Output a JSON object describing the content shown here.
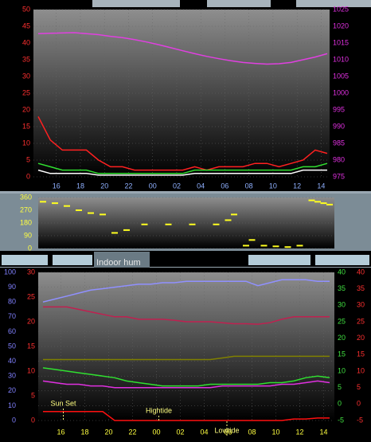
{
  "chart_data": [
    {
      "type": "line",
      "xlim": [
        14.1,
        38.7
      ],
      "xticks": [
        16,
        18,
        20,
        22,
        {
          "value": 24,
          "label": "00"
        },
        {
          "value": 26,
          "label": "02"
        },
        {
          "value": 28,
          "label": "04"
        },
        {
          "value": 30,
          "label": "06"
        },
        {
          "value": 32,
          "label": "08"
        },
        {
          "value": 34,
          "label": "10"
        },
        {
          "value": 36,
          "label": "12"
        },
        {
          "value": 38,
          "label": "14"
        }
      ],
      "ylim": [
        0,
        50
      ],
      "yticks": [
        0,
        5,
        10,
        15,
        20,
        25,
        30,
        35,
        40,
        45,
        50
      ],
      "ytick_color": "#ff3030",
      "y2lim": [
        975,
        1025
      ],
      "y2ticks": [
        975,
        980,
        985,
        990,
        995,
        1000,
        1005,
        1010,
        1015,
        1020,
        1025
      ],
      "y2tick_color": "#e030e0",
      "grid": true,
      "xtick_color": "#8fb0ff",
      "x": [
        14.5,
        15.5,
        16.5,
        17.5,
        18.5,
        19.5,
        20.5,
        21.5,
        22.5,
        23.5,
        24.5,
        25.5,
        26.5,
        27.5,
        28.5,
        29.5,
        30.5,
        31.5,
        32.5,
        33.5,
        34.5,
        35.5,
        36.5,
        37.5,
        38.5
      ],
      "series": [
        {
          "color": "#e040e0",
          "axis": "y2",
          "values": [
            1017.8,
            1017.9,
            1018,
            1018.1,
            1017.8,
            1017.5,
            1017,
            1016.6,
            1016,
            1015.3,
            1014.5,
            1013.6,
            1012.7,
            1011.8,
            1011,
            1010.3,
            1009.7,
            1009.2,
            1008.9,
            1008.7,
            1008.8,
            1009.2,
            1010,
            1010.8,
            1011.8
          ]
        },
        {
          "color": "#ff2020",
          "values": [
            18,
            11,
            8,
            8,
            8,
            5,
            3,
            3,
            2,
            2,
            2,
            2,
            2,
            3,
            2,
            3,
            3,
            3,
            4,
            4,
            3,
            4,
            5,
            8,
            7
          ]
        },
        {
          "color": "#30e030",
          "values": [
            4,
            3,
            2,
            2,
            2,
            1,
            1,
            1,
            1,
            1,
            1,
            1,
            1,
            2,
            2,
            2,
            2,
            2,
            2,
            2,
            2,
            2,
            3,
            3,
            4
          ]
        },
        {
          "color": "#ffffff",
          "values": [
            2,
            1,
            1,
            1,
            1,
            0.5,
            0.5,
            0.5,
            0.5,
            0.5,
            0.5,
            0.5,
            0.5,
            1,
            1,
            1,
            1,
            1,
            1,
            1,
            1,
            1,
            2,
            2,
            2
          ]
        }
      ]
    },
    {
      "type": "scatter",
      "xlim": [
        14.1,
        38.9
      ],
      "ylim": [
        0,
        360
      ],
      "yticks": [
        0,
        90,
        180,
        270,
        360
      ],
      "ytick_color": "#ffff40",
      "grid": true,
      "x": [
        14.5,
        15.5,
        16.5,
        17.5,
        18.5,
        19.5,
        20.5,
        21.5,
        23,
        25,
        27,
        29,
        30,
        30.5,
        31.5,
        32,
        33,
        34,
        35,
        36,
        37,
        37.5,
        38,
        38.5
      ],
      "series": [
        {
          "color": "#ffff20",
          "values": [
            330,
            320,
            300,
            270,
            250,
            240,
            110,
            130,
            170,
            170,
            170,
            170,
            200,
            240,
            20,
            60,
            20,
            15,
            10,
            20,
            340,
            330,
            320,
            310
          ]
        }
      ]
    },
    {
      "type": "line",
      "title": "Indoor hum",
      "xlim": [
        14.1,
        38.9
      ],
      "xticks": [
        16,
        18,
        20,
        22,
        {
          "value": 24,
          "label": "00"
        },
        {
          "value": 26,
          "label": "02"
        },
        {
          "value": 28,
          "label": "04"
        },
        {
          "value": 30,
          "label": "06"
        },
        {
          "value": 32,
          "label": "08"
        },
        {
          "value": 34,
          "label": "10"
        },
        {
          "value": 36,
          "label": "12"
        },
        {
          "value": 38,
          "label": "14"
        }
      ],
      "xtick_color": "#ffff40",
      "ylim": [
        0,
        100
      ],
      "yticks": [
        0,
        10,
        20,
        30,
        40,
        50,
        60,
        70,
        80,
        90,
        100
      ],
      "ytick_color": "#8080ff",
      "y2lim": [
        0,
        30
      ],
      "y2ticks": [
        0,
        5,
        10,
        15,
        20,
        25,
        30
      ],
      "y2tick_color": "#ff3030",
      "y3lim": [
        -5,
        40
      ],
      "y3ticks": [
        -5,
        0,
        5,
        10,
        15,
        20,
        25,
        30,
        35,
        40
      ],
      "y3tick_color": "#40e040",
      "y4lim": [
        -5,
        40
      ],
      "y4ticks": [
        -5,
        0,
        5,
        10,
        15,
        20,
        25,
        30,
        35,
        40
      ],
      "y4tick_color": "#ff3030",
      "grid": true,
      "x": [
        14.5,
        15.5,
        16.5,
        17.5,
        18.5,
        19.5,
        20.5,
        21.5,
        22.5,
        23.5,
        24.5,
        25.5,
        26.5,
        27.5,
        28.5,
        29.5,
        30.5,
        31.5,
        32.5,
        33.5,
        34.5,
        35.5,
        36.5,
        37.5,
        38.5
      ],
      "series": [
        {
          "color": "#9090ff",
          "values": [
            80,
            82,
            84,
            86,
            88,
            89,
            90,
            91,
            92,
            92,
            93,
            93,
            94,
            94,
            94,
            94,
            94,
            94,
            91,
            93,
            95,
            95,
            95,
            94,
            94
          ]
        },
        {
          "color": "#c02050",
          "axis": "y2",
          "values": [
            23,
            23,
            23,
            22.5,
            22,
            21.5,
            21,
            21,
            20.5,
            20.5,
            20.5,
            20.3,
            20,
            20,
            20,
            19.8,
            19.6,
            19.6,
            19.5,
            19.8,
            20.5,
            21,
            21,
            21,
            21
          ]
        },
        {
          "color": "#808000",
          "axis": "y3",
          "values": [
            13.5,
            13.5,
            13.5,
            13.5,
            13.5,
            13.5,
            13.5,
            13.5,
            13.5,
            13.5,
            13.5,
            13.5,
            13.5,
            13.5,
            13.5,
            14,
            14.5,
            14.5,
            14.5,
            14.5,
            14.5,
            14.5,
            14.5,
            14.5,
            14.5
          ]
        },
        {
          "color": "#30e030",
          "axis": "y3",
          "values": [
            11,
            10.5,
            10,
            9.5,
            9,
            8.5,
            8,
            7,
            6.5,
            6,
            5.5,
            5.5,
            5.5,
            5.5,
            6,
            6,
            6,
            6,
            6,
            6.5,
            6.5,
            7,
            8,
            8.5,
            8
          ]
        },
        {
          "color": "#e030e0",
          "axis": "y3",
          "values": [
            7,
            6.5,
            6,
            6,
            5.5,
            5.5,
            5,
            5,
            5,
            5,
            5,
            5,
            5,
            5,
            5,
            5.5,
            5.5,
            5.5,
            5.5,
            5.5,
            6,
            6,
            6.5,
            7,
            6.5
          ]
        },
        {
          "color": "#ff1010",
          "axis": "y2",
          "values": [
            1.8,
            1.8,
            1.8,
            1.8,
            1.8,
            1.8,
            0,
            0,
            0,
            0,
            0,
            0,
            0,
            0,
            0,
            0,
            0,
            0,
            0,
            0,
            0,
            0.3,
            0.3,
            0.5,
            0.5
          ]
        }
      ],
      "annotations": [
        {
          "text": "Sun Set",
          "x": 16.2
        },
        {
          "text": "Hightide",
          "x": 24.2
        },
        {
          "text": "Lowtide",
          "x": 29.9
        }
      ]
    }
  ]
}
